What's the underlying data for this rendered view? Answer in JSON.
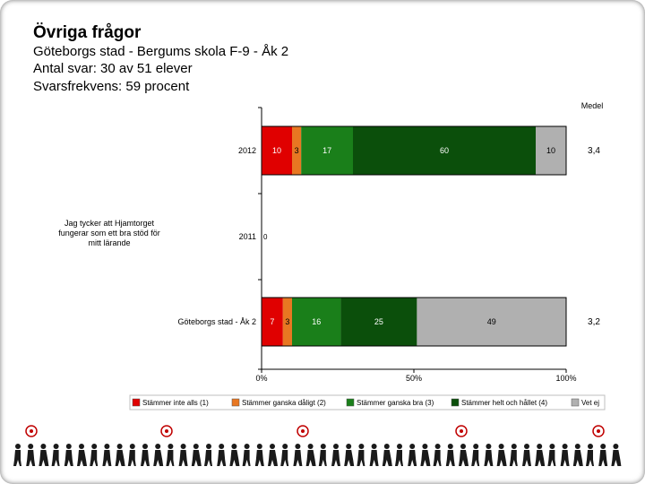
{
  "header": {
    "title": "Övriga frågor",
    "subtitle": "Göteborgs stad - Bergums skola F-9 - Åk 2",
    "responses": "Antal svar: 30 av 51 elever",
    "response_rate": "Svarsfrekvens: 59 procent"
  },
  "chart_data": {
    "type": "bar",
    "orientation": "horizontal",
    "stacked": true,
    "percent_scale": true,
    "question": "Jag tycker att Hjamtorget fungerar som ett bra stöd för mitt lärande",
    "categories": [
      "2012",
      "2011",
      "Göteborgs stad - Åk 2"
    ],
    "category_label_lines": [
      [
        "2012"
      ],
      [
        "2011"
      ],
      [
        "Göteborgs stad - Åk 2"
      ]
    ],
    "question_lines": [
      "Jag tycker att Hjamtorget",
      "fungerar som ett bra stöd för",
      "mitt lärande"
    ],
    "series": [
      {
        "name": "Stämmer inte alls (1)",
        "color": "#e00000",
        "values": [
          10,
          null,
          7
        ]
      },
      {
        "name": "Stämmer ganska dåligt (2)",
        "color": "#e87722",
        "values": [
          3,
          null,
          3
        ]
      },
      {
        "name": "Stämmer ganska bra (3)",
        "color": "#1a7f1a",
        "values": [
          17,
          null,
          16
        ]
      },
      {
        "name": "Stämmer helt och hållet (4)",
        "color": "#0b4f0b",
        "values": [
          60,
          null,
          25
        ]
      },
      {
        "name": "Vet ej",
        "color": "#b0b0b0",
        "values": [
          10,
          null,
          49
        ]
      }
    ],
    "empty_row_label": "0",
    "xlim": [
      0,
      100
    ],
    "xticks": [
      "0%",
      "50%",
      "100%"
    ],
    "mean_header": "Medel",
    "means": [
      "3,4",
      "",
      "3,2"
    ],
    "legend_position": "bottom"
  }
}
